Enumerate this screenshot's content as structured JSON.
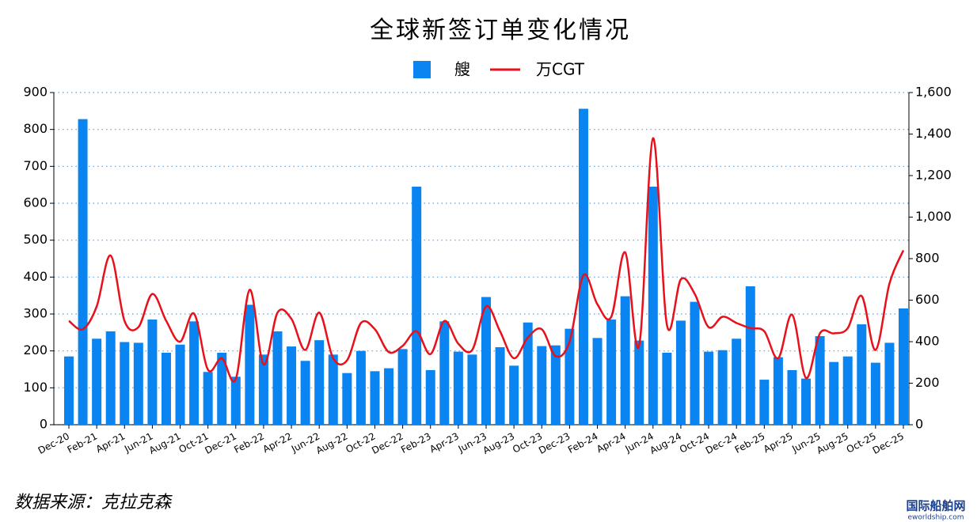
{
  "chart_data": {
    "type": "combo",
    "title": "全球新签订单变化情况",
    "categories": [
      "Dec-20",
      null,
      "Feb-21",
      null,
      "Apr-21",
      null,
      "Jun-21",
      null,
      "Aug-21",
      null,
      "Oct-21",
      null,
      "Dec-21",
      null,
      "Feb-22",
      null,
      "Apr-22",
      null,
      "Jun-22",
      null,
      "Aug-22",
      null,
      "Oct-22",
      null,
      "Dec-22",
      null,
      "Feb-23",
      null,
      "Apr-23",
      null,
      "Jun-23",
      null,
      "Aug-23",
      null,
      "Oct-23",
      null,
      "Dec-23",
      null,
      "Feb-24",
      null,
      "Apr-24",
      null,
      "Jun-24",
      null,
      "Aug-24",
      null,
      "Oct-24",
      null,
      "Dec-24",
      null,
      "Feb-25",
      null,
      "Apr-25",
      null,
      "Jun-25",
      null,
      "Aug-25",
      null,
      "Oct-25",
      null,
      "Dec-25"
    ],
    "series": [
      {
        "name": "艘",
        "type": "bar",
        "color": "#0a84f0",
        "axis": "y",
        "values": [
          185,
          828,
          233,
          253,
          224,
          222,
          285,
          195,
          217,
          280,
          143,
          195,
          130,
          325,
          190,
          253,
          212,
          173,
          229,
          190,
          140,
          200,
          145,
          153,
          205,
          645,
          148,
          280,
          198,
          190,
          346,
          210,
          160,
          277,
          213,
          215,
          260,
          856,
          235,
          285,
          348,
          228,
          645,
          195,
          282,
          333,
          198,
          202,
          233,
          375,
          122,
          183,
          148,
          125,
          240,
          170,
          185,
          272,
          168,
          222,
          315
        ]
      },
      {
        "name": "万CGT",
        "type": "line",
        "color": "#e8101a",
        "axis": "y2",
        "values": [
          500,
          460,
          570,
          815,
          500,
          470,
          630,
          500,
          400,
          535,
          265,
          320,
          220,
          650,
          290,
          540,
          510,
          360,
          540,
          320,
          310,
          490,
          460,
          350,
          380,
          450,
          340,
          500,
          390,
          360,
          570,
          450,
          320,
          420,
          460,
          330,
          400,
          720,
          580,
          520,
          830,
          380,
          1380,
          480,
          700,
          630,
          470,
          520,
          490,
          465,
          450,
          320,
          530,
          225,
          440,
          440,
          465,
          620,
          360,
          680,
          840
        ]
      }
    ],
    "ylim": [
      0,
      900
    ],
    "yticks": [
      0,
      100,
      200,
      300,
      400,
      500,
      600,
      700,
      800,
      900
    ],
    "y2lim": [
      0,
      1600
    ],
    "y2ticks": [
      0,
      200,
      400,
      600,
      800,
      {
        "value": 1000,
        "label": "1,000"
      },
      {
        "value": 1200,
        "label": "1,200"
      },
      {
        "value": 1400,
        "label": "1,400"
      },
      {
        "value": 1600,
        "label": "1,600"
      }
    ],
    "grid": true,
    "source": "数据来源：克拉克森",
    "watermark": "国际船舶网",
    "watermark_url": "eworldship.com"
  }
}
